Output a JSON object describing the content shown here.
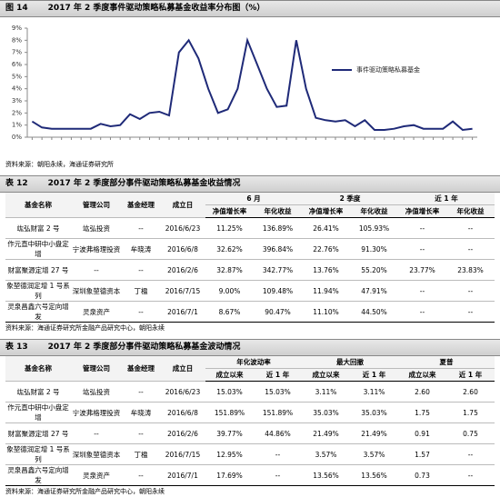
{
  "figure": {
    "label": "图 14",
    "title": "2017 年 2 季度事件驱动策略私募基金收益率分布图（%）",
    "source": "资料来源：朝阳永续，海通证券研究所"
  },
  "chart_data": {
    "type": "line",
    "categories": [
      null,
      null,
      null,
      null,
      null,
      null,
      null,
      null,
      null,
      null,
      null,
      null,
      null,
      null,
      null,
      null,
      null,
      null,
      null,
      null,
      null,
      null,
      null,
      null,
      null,
      null,
      null,
      null,
      null,
      null,
      null,
      null,
      null,
      null,
      null,
      null,
      null,
      null,
      null,
      null,
      null,
      null,
      null,
      null,
      null,
      null
    ],
    "series": [
      {
        "name": "事件驱动策略私募基金",
        "color": "#1f2a78",
        "values": [
          1.3,
          0.8,
          0.7,
          0.7,
          0.7,
          0.7,
          0.7,
          1.1,
          0.9,
          1.0,
          1.9,
          1.5,
          2.0,
          2.1,
          1.8,
          7.0,
          8.0,
          6.5,
          4.0,
          2.0,
          2.3,
          4.0,
          8.0,
          6.0,
          4.0,
          2.5,
          2.6,
          8.0,
          4.0,
          1.6,
          1.4,
          1.3,
          1.4,
          0.9,
          1.4,
          0.6,
          0.6,
          0.7,
          0.9,
          1.0,
          0.7,
          0.7,
          0.7,
          1.3,
          0.6,
          0.7
        ]
      }
    ],
    "ylim": [
      0,
      9
    ],
    "yticks": [
      {
        "value": 0,
        "label": "0%"
      },
      {
        "value": 1,
        "label": "1%"
      },
      {
        "value": 2,
        "label": "2%"
      },
      {
        "value": 3,
        "label": "3%"
      },
      {
        "value": 4,
        "label": "4%"
      },
      {
        "value": 5,
        "label": "5%"
      },
      {
        "value": 6,
        "label": "6%"
      },
      {
        "value": 7,
        "label": "7%"
      },
      {
        "value": 8,
        "label": "8%"
      },
      {
        "value": 9,
        "label": "9%"
      }
    ],
    "grid": false,
    "legend": "right"
  },
  "tables": [
    {
      "label": "表 12",
      "title": "2017 年 2 季度部分事件驱动策略私募基金收益情况",
      "columns": [
        "基金名称",
        "管理公司",
        "基金经理",
        "成立日"
      ],
      "groups": [
        "6 月",
        "2 季度",
        "近 1 年"
      ],
      "subcolumns": [
        "净值增长率",
        "年化收益",
        "净值增长率",
        "年化收益",
        "净值增长率",
        "年化收益"
      ],
      "rows": [
        [
          "竑弘财富 2 号",
          "竑弘投资",
          "--",
          "2016/6/23",
          "11.25%",
          "136.89%",
          "26.41%",
          "105.93%",
          "--",
          "--"
        ],
        [
          "作元直中研中小盘定增",
          "宁波弗格理投资",
          "牟晓涛",
          "2016/6/8",
          "32.62%",
          "396.84%",
          "22.76%",
          "91.30%",
          "--",
          "--"
        ],
        [
          "财富聚源定增 27 号",
          "--",
          "--",
          "2016/2/6",
          "32.87%",
          "342.77%",
          "13.76%",
          "55.20%",
          "23.77%",
          "23.83%"
        ],
        [
          "象堃德润定增 1 号系列",
          "深圳象堃德资本",
          "丁楹",
          "2016/7/15",
          "9.00%",
          "109.48%",
          "11.94%",
          "47.91%",
          "--",
          "--"
        ],
        [
          "灵泉昌鑫六号定向增发",
          "灵泉资产",
          "--",
          "2016/7/1",
          "8.67%",
          "90.47%",
          "11.10%",
          "44.50%",
          "--",
          "--"
        ]
      ],
      "source": "资料来源：海通证券研究所金融产品研究中心，朝阳永续"
    },
    {
      "label": "表 13",
      "title": "2017 年 2 季度部分事件驱动策略私募基金波动情况",
      "columns": [
        "基金名称",
        "管理公司",
        "基金经理",
        "成立日"
      ],
      "groups": [
        "年化波动率",
        "最大回撤",
        "夏普"
      ],
      "subcolumns": [
        "成立以来",
        "近 1 年",
        "成立以来",
        "近 1 年",
        "成立以来",
        "近 1 年"
      ],
      "rows": [
        [
          "竑弘财富 2 号",
          "竑弘投资",
          "--",
          "2016/6/23",
          "15.03%",
          "15.03%",
          "3.11%",
          "3.11%",
          "2.60",
          "2.60"
        ],
        [
          "作元直中研中小盘定增",
          "宁波弗格理投资",
          "牟晓涛",
          "2016/6/8",
          "151.89%",
          "151.89%",
          "35.03%",
          "35.03%",
          "1.75",
          "1.75"
        ],
        [
          "财富聚源定增 27 号",
          "--",
          "--",
          "2016/2/6",
          "39.77%",
          "44.86%",
          "21.49%",
          "21.49%",
          "0.91",
          "0.75"
        ],
        [
          "象堃德润定增 1 号系列",
          "深圳象堃德资本",
          "丁楹",
          "2016/7/15",
          "12.95%",
          "--",
          "3.57%",
          "3.57%",
          "1.57",
          "--"
        ],
        [
          "灵泉昌鑫六号定向增发",
          "灵泉资产",
          "--",
          "2016/7/1",
          "17.69%",
          "--",
          "13.56%",
          "13.56%",
          "0.73",
          "--"
        ]
      ],
      "source": "资料来源：海通证券研究所金融产品研究中心，朝阳永续"
    }
  ]
}
